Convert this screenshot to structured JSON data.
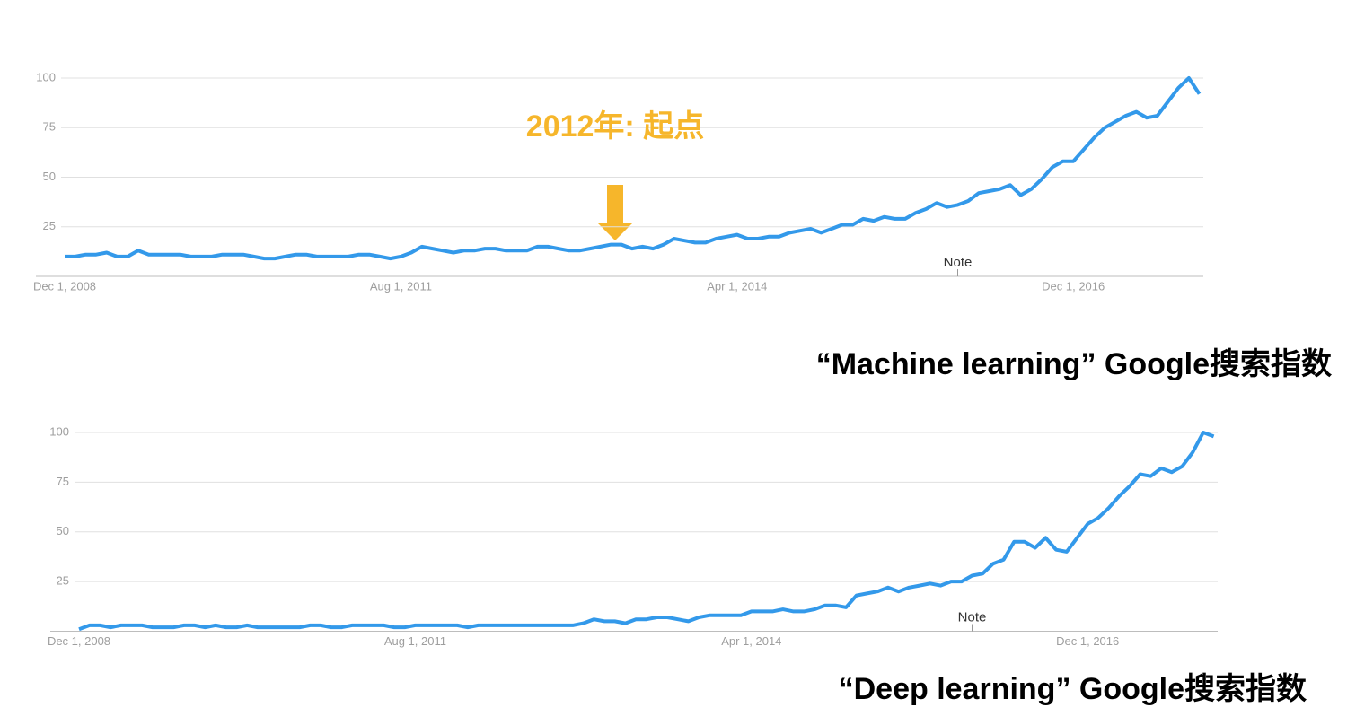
{
  "chart_data": [
    {
      "type": "line",
      "title": "“Machine learning” Google搜索指数",
      "color": "#3399ea",
      "categories": [
        "Dec 1, 2008",
        null,
        null,
        null,
        null,
        null,
        null,
        null,
        null,
        null,
        null,
        null,
        null,
        null,
        null,
        null,
        null,
        null,
        null,
        null,
        null,
        null,
        null,
        null,
        null,
        null,
        null,
        null,
        null,
        null,
        null,
        null,
        "Aug 1, 2011",
        null,
        null,
        null,
        null,
        null,
        null,
        null,
        null,
        null,
        null,
        null,
        null,
        null,
        null,
        null,
        null,
        null,
        null,
        null,
        null,
        null,
        null,
        null,
        null,
        null,
        null,
        null,
        null,
        null,
        null,
        null,
        "Apr 1, 2014",
        null,
        null,
        null,
        null,
        null,
        null,
        null,
        null,
        null,
        null,
        null,
        null,
        null,
        null,
        null,
        null,
        null,
        null,
        null,
        null,
        null,
        null,
        null,
        null,
        null,
        null,
        null,
        null,
        null,
        null,
        null,
        "Dec 1, 2016",
        null,
        null,
        null,
        null,
        null,
        null,
        null,
        null,
        null,
        null,
        null,
        null
      ],
      "values": [
        10,
        10,
        11,
        11,
        12,
        10,
        10,
        13,
        11,
        11,
        11,
        11,
        10,
        10,
        10,
        11,
        11,
        11,
        10,
        9,
        9,
        10,
        11,
        11,
        10,
        10,
        10,
        10,
        11,
        11,
        10,
        9,
        10,
        12,
        15,
        14,
        13,
        12,
        13,
        13,
        14,
        14,
        13,
        13,
        13,
        15,
        15,
        14,
        13,
        13,
        14,
        15,
        16,
        16,
        14,
        15,
        14,
        16,
        19,
        18,
        17,
        17,
        19,
        20,
        21,
        19,
        19,
        20,
        20,
        22,
        23,
        24,
        22,
        24,
        26,
        26,
        29,
        28,
        30,
        29,
        29,
        32,
        34,
        37,
        35,
        36,
        38,
        42,
        43,
        44,
        46,
        41,
        44,
        49,
        55,
        58,
        58,
        64,
        70,
        75,
        78,
        81,
        83,
        80,
        81,
        88,
        95,
        100,
        92
      ],
      "ylim": [
        0,
        100
      ],
      "yticks": [
        25,
        50,
        75,
        100
      ],
      "grid": true,
      "annotations": [
        "Note",
        "2012年: 起点"
      ]
    },
    {
      "type": "line",
      "title": "“Deep learning” Google搜索指数",
      "color": "#3399ea",
      "categories": [
        "Dec 1, 2008",
        null,
        null,
        null,
        null,
        null,
        null,
        null,
        null,
        null,
        null,
        null,
        null,
        null,
        null,
        null,
        null,
        null,
        null,
        null,
        null,
        null,
        null,
        null,
        null,
        null,
        null,
        null,
        null,
        null,
        null,
        null,
        "Aug 1, 2011",
        null,
        null,
        null,
        null,
        null,
        null,
        null,
        null,
        null,
        null,
        null,
        null,
        null,
        null,
        null,
        null,
        null,
        null,
        null,
        null,
        null,
        null,
        null,
        null,
        null,
        null,
        null,
        null,
        null,
        null,
        null,
        "Apr 1, 2014",
        null,
        null,
        null,
        null,
        null,
        null,
        null,
        null,
        null,
        null,
        null,
        null,
        null,
        null,
        null,
        null,
        null,
        null,
        null,
        null,
        null,
        null,
        null,
        null,
        null,
        null,
        null,
        null,
        null,
        null,
        null,
        "Dec 1, 2016",
        null,
        null,
        null,
        null,
        null,
        null,
        null,
        null,
        null,
        null,
        null,
        null
      ],
      "values": [
        1,
        3,
        3,
        2,
        3,
        3,
        3,
        2,
        2,
        2,
        3,
        3,
        2,
        3,
        2,
        2,
        3,
        2,
        2,
        2,
        2,
        2,
        3,
        3,
        2,
        2,
        3,
        3,
        3,
        3,
        2,
        2,
        3,
        3,
        3,
        3,
        3,
        2,
        3,
        3,
        3,
        3,
        3,
        3,
        3,
        3,
        3,
        3,
        4,
        6,
        5,
        5,
        4,
        6,
        6,
        7,
        7,
        6,
        5,
        7,
        8,
        8,
        8,
        8,
        10,
        10,
        10,
        11,
        10,
        10,
        11,
        13,
        13,
        12,
        18,
        19,
        20,
        22,
        20,
        22,
        23,
        24,
        23,
        25,
        25,
        28,
        29,
        34,
        36,
        45,
        45,
        42,
        47,
        41,
        40,
        47,
        54,
        57,
        62,
        68,
        73,
        79,
        78,
        82,
        80,
        83,
        90,
        100,
        98
      ],
      "ylim": [
        0,
        100
      ],
      "yticks": [
        25,
        50,
        75,
        100
      ],
      "grid": true,
      "annotations": [
        "Note"
      ]
    }
  ]
}
